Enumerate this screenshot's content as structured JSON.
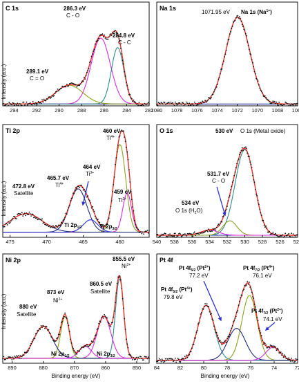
{
  "colors": {
    "data": "#111111",
    "fit": "#e4322b",
    "background": "#1f2aa0",
    "green": "#8e9e20",
    "magenta": "#d52bd9",
    "cyan": "#2c8a8c",
    "navy": "#1e2a7a",
    "blue": "#2a2ed8"
  },
  "chart_data": [
    {
      "type": "line",
      "title": "C 1s",
      "ylabel": "Intensity (a.u.)",
      "xlim": [
        295,
        282
      ],
      "xticks": [
        "294",
        "292",
        "290",
        "288",
        "286",
        "284",
        "282"
      ],
      "annotations": [
        {
          "text": "286.3 eV",
          "sub": "C - O"
        },
        {
          "text": "284.8 eV",
          "sub": "C - C"
        },
        {
          "text": "289.1 eV",
          "sub": "C = O"
        }
      ],
      "series": [
        {
          "name": "",
          "peaks": [
            [
              286.3,
              0.7,
              0.85
            ],
            [
              284.8,
              0.6,
              0.55
            ],
            [
              289.1,
              0.2,
              1.2
            ]
          ],
          "baseline": 0.02
        }
      ]
    },
    {
      "type": "line",
      "title": "Na 1s",
      "xlim": [
        1080,
        1066
      ],
      "xticks": [
        "1080",
        "1078",
        "1076",
        "1074",
        "1072",
        "1070",
        "1068",
        "1066"
      ],
      "annotations": [
        {
          "text": "1071.95 eV",
          "sub": "Na 1s (Na1+)"
        }
      ],
      "series": [
        {
          "name": "",
          "peaks": [
            [
              1071.95,
              0.92,
              1.2
            ]
          ],
          "baseline": 0.02
        }
      ]
    },
    {
      "type": "line",
      "title": "Ti 2p",
      "ylabel": "Intensity (a.u.)",
      "xlim": [
        476,
        456
      ],
      "xticks": [
        "475",
        "470",
        "465",
        "460"
      ],
      "annotations": [
        {
          "text": "460 eV",
          "sub": "Ti4+"
        },
        {
          "text": "465.7 eV",
          "sub": "Ti4+"
        },
        {
          "text": "464 eV",
          "sub": "Ti3+"
        },
        {
          "text": "459 eV",
          "sub": "Ti3+"
        },
        {
          "text": "472.8 eV",
          "sub": "Satellite"
        },
        {
          "text": "Ti 2p1/2"
        },
        {
          "text": "Ti 2p3/2"
        }
      ],
      "series": [
        {
          "name": "",
          "peaks": [
            [
              460.0,
              0.85,
              0.8
            ],
            [
              459.0,
              0.38,
              0.6
            ],
            [
              465.7,
              0.42,
              1.2
            ],
            [
              464.0,
              0.12,
              1.0
            ],
            [
              472.8,
              0.18,
              2.2
            ]
          ],
          "baseline": 0.05
        }
      ]
    },
    {
      "type": "line",
      "title": "O 1s",
      "xlim": [
        540,
        524
      ],
      "xticks": [
        "540",
        "538",
        "536",
        "534",
        "532",
        "530",
        "528",
        "526",
        "524"
      ],
      "annotations": [
        {
          "text": "530 eV",
          "sub": "O 1s (Metal oxide)"
        },
        {
          "text": "531.7 eV",
          "sub": "C - O"
        },
        {
          "text": "534 eV",
          "sub": "O 1s (H2O)"
        }
      ],
      "series": [
        {
          "name": "",
          "peaks": [
            [
              530.0,
              0.83,
              1.1
            ],
            [
              531.7,
              0.14,
              0.8
            ],
            [
              534.0,
              0.05,
              1.0
            ]
          ],
          "baseline": 0.02
        }
      ]
    },
    {
      "type": "line",
      "title": "Ni 2p",
      "ylabel": "Intensity (a.u.)",
      "xlabel": "Binding energy (eV)",
      "xlim": [
        893,
        846
      ],
      "xticks": [
        "890",
        "880",
        "870",
        "860",
        "850"
      ],
      "annotations": [
        {
          "text": "855.5 eV",
          "sub": "Ni2+"
        },
        {
          "text": "860.5 eV",
          "sub": "Satellite"
        },
        {
          "text": "873 eV",
          "sub": "Ni2+"
        },
        {
          "text": "880 eV",
          "sub": "Satellite"
        },
        {
          "text": "Ni 2p1/2"
        },
        {
          "text": "Ni 2p3/2"
        }
      ],
      "series": [
        {
          "name": "",
          "peaks": [
            [
              855.5,
              0.8,
              1.3
            ],
            [
              860.5,
              0.42,
              2.2
            ],
            [
              873.0,
              0.42,
              1.4
            ],
            [
              880.0,
              0.32,
              3.0
            ],
            [
              866.5,
              0.12,
              2.0
            ]
          ],
          "baseline": 0.05
        }
      ]
    },
    {
      "type": "line",
      "title": "Pt 4f",
      "xlabel": "Binding energy (eV)",
      "xlim": [
        84,
        72
      ],
      "xticks": [
        "84",
        "82",
        "80",
        "78",
        "76",
        "74",
        "72"
      ],
      "annotations": [
        {
          "text": "Pt 4f5/2 (Pt2+)",
          "sub": "77.2 eV"
        },
        {
          "text": "Pt 4f7/2 (Pt4+)",
          "sub": "76.1 eV"
        },
        {
          "text": "Pt 4f5/2 (Pt4+)",
          "sub": "79.8 eV"
        },
        {
          "text": "Pt 4f7/2 (Pt2+)",
          "sub": "74.1 eV"
        }
      ],
      "series": [
        {
          "name": "",
          "peaks": [
            [
              79.8,
              0.55,
              0.7
            ],
            [
              76.1,
              0.65,
              0.65
            ],
            [
              77.2,
              0.32,
              0.75
            ],
            [
              74.1,
              0.13,
              0.6
            ]
          ],
          "baseline": 0.03
        }
      ]
    }
  ],
  "labels": {
    "c1s": {
      "title": "C 1s",
      "p1": "286.3 eV",
      "p1b": "C - O",
      "p2": "284.8 eV",
      "p2b": "C - C",
      "p3": "289.1 eV",
      "p3b": "C = O"
    },
    "na1s": {
      "title": "Na 1s",
      "p1": "1071.95 eV",
      "p1b": "Na 1s (Na",
      "p1sup": "1+",
      "p1end": ")"
    },
    "ti2p": {
      "title": "Ti 2p",
      "p1": "460 eV",
      "p1b": "Ti",
      "p1sup": "4+",
      "p2": "465.7 eV",
      "p2b": "Ti",
      "p2sup": "4+",
      "p3": "464 eV",
      "p3b": "Ti",
      "p3sup": "3+",
      "p4": "459 eV",
      "p4b": "Ti",
      "p4sup": "3+",
      "p5": "472.8 eV",
      "p5b": "Satellite",
      "d1": "Ti 2p",
      "d1sub": "1/2",
      "d2": "Ti 2p",
      "d2sub": "3/2"
    },
    "o1s": {
      "title": "O 1s",
      "p1": "530 eV",
      "p1b": "O 1s (Metal oxide)",
      "p2": "531.7 eV",
      "p2b": "C - O",
      "p3": "534 eV",
      "p3b": "O 1s (H",
      "p3sub": "2",
      "p3end": "O)"
    },
    "ni2p": {
      "title": "Ni 2p",
      "p1": "855.5 eV",
      "p1b": "Ni",
      "p1sup": "2+",
      "p2": "860.5 eV",
      "p2b": "Satellite",
      "p3": "873 eV",
      "p3b": "Ni",
      "p3sup": "2+",
      "p4": "880 eV",
      "p4b": "Satellite",
      "d1": "Ni 2p",
      "d1sub": "1/2",
      "d2": "Ni 2p",
      "d2sub": "3/2"
    },
    "pt4f": {
      "title": "Pt 4f",
      "p1": "Pt 4f",
      "p1sub": "5/2",
      "p1mid": " (Pt",
      "p1sup": "2+",
      "p1end": ")",
      "p1b": "77.2 eV",
      "p2": "Pt 4f",
      "p2sub": "7/2",
      "p2mid": " (Pt",
      "p2sup": "4+",
      "p2end": ")",
      "p2b": "76.1 eV",
      "p3": "Pt 4f",
      "p3sub": "5/2",
      "p3mid": " (Pt",
      "p3sup": "4+",
      "p3end": ")",
      "p3b": "79.8 eV",
      "p4": "Pt 4f",
      "p4sub": "7/2",
      "p4mid": " (Pt",
      "p4sup": "2+",
      "p4end": ")",
      "p4b": "74.1 eV"
    },
    "ylabel": "Intensity (a.u.)",
    "xlabel": "Binding energy (eV)"
  }
}
